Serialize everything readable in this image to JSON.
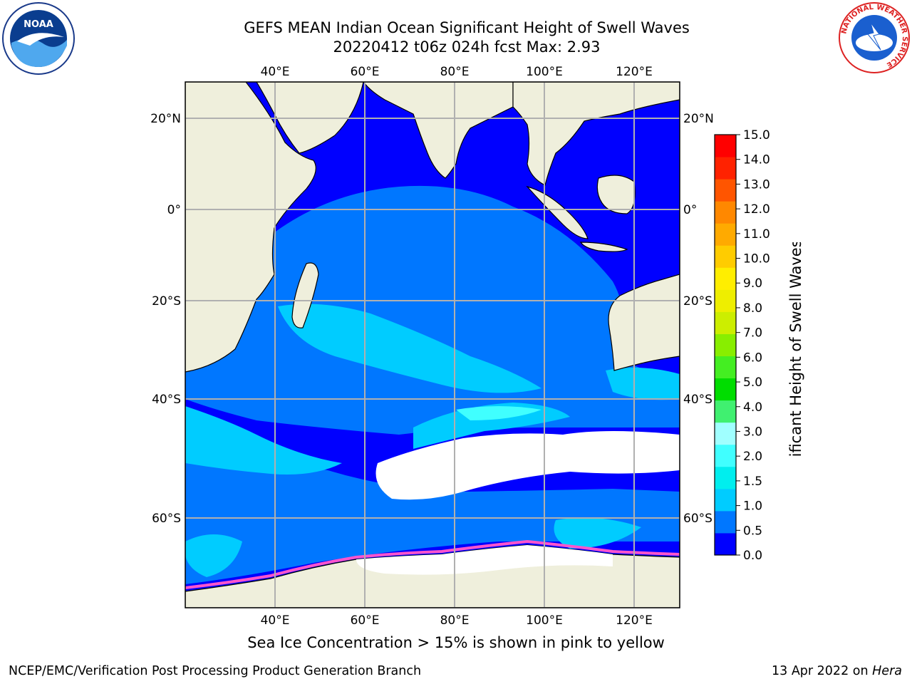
{
  "title": {
    "line1": "GEFS MEAN Indian Ocean Significant Height of Swell Waves",
    "line2": "20220412 t06z 024h fcst   Max: 2.93"
  },
  "map": {
    "lon_labels": [
      "40°E",
      "60°E",
      "80°E",
      "100°E",
      "120°E"
    ],
    "lat_labels": [
      "20°N",
      "0°",
      "20°S",
      "40°S",
      "60°S"
    ],
    "lon_values": [
      40,
      60,
      80,
      100,
      120
    ],
    "lat_values": [
      20,
      0,
      -20,
      -40,
      -60
    ]
  },
  "colorbar": {
    "label": "Significant Height of Swell Waves [m]",
    "ticks": [
      "0.0",
      "0.5",
      "1.0",
      "1.5",
      "2.0",
      "3.0",
      "4.0",
      "5.0",
      "6.0",
      "7.0",
      "8.0",
      "9.0",
      "10.0",
      "11.0",
      "12.0",
      "13.0",
      "14.0",
      "15.0"
    ],
    "colors": [
      "#0000ff",
      "#0077ff",
      "#00ccff",
      "#00eeee",
      "#40ffff",
      "#a0ffff",
      "#40f070",
      "#00dd00",
      "#44ee22",
      "#88ee00",
      "#ccee00",
      "#eeee00",
      "#ffee00",
      "#ffcc00",
      "#ffaa00",
      "#ff8800",
      "#ff5500",
      "#ff2200",
      "#ff0000"
    ]
  },
  "colors": {
    "land": "#efefdc",
    "ice": "#ffffff",
    "grid": "#b0b0b0"
  },
  "caption": "Sea Ice Concentration > 15% is shown in pink to yellow",
  "footer": {
    "left": "NCEP/EMC/Verification Post Processing Product Generation Branch",
    "right_date": "13 Apr 2022 on ",
    "right_host": "Hera"
  },
  "logos": {
    "noaa_text": "NOAA",
    "nws_text": "NATIONAL WEATHER SERVICE"
  }
}
